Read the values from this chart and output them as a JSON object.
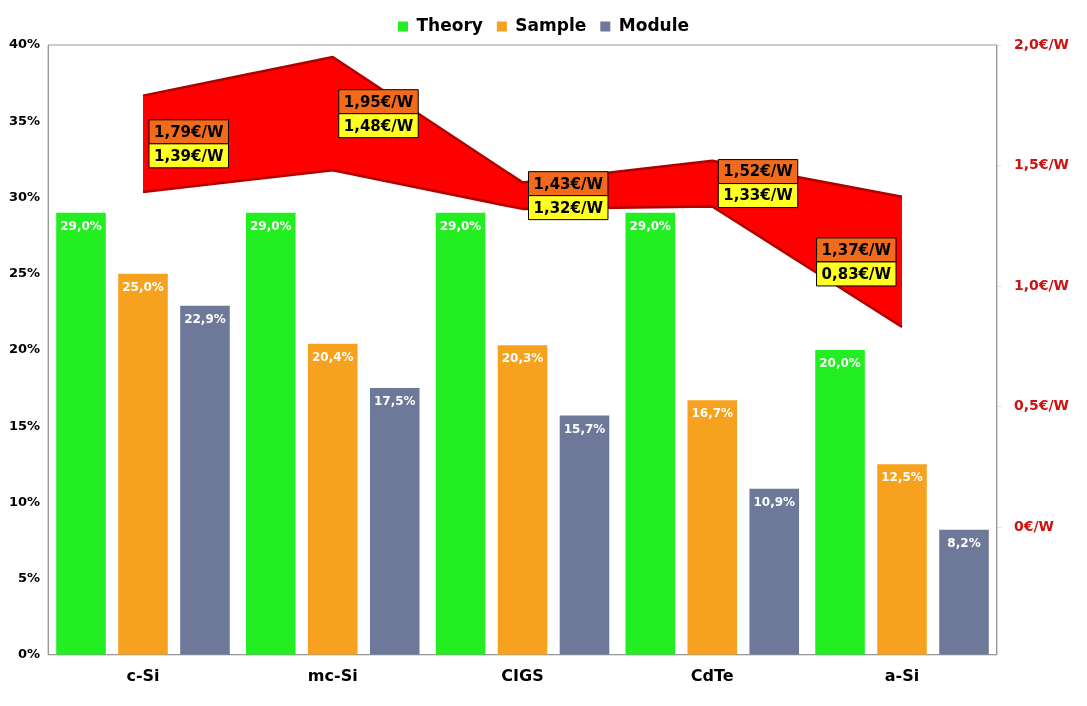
{
  "chart_data": {
    "type": "bar",
    "categories": [
      "c-Si",
      "mc-Si",
      "CIGS",
      "CdTe",
      "a-Si"
    ],
    "ylim": [
      0,
      40
    ],
    "yticks": [
      {
        "value": 0,
        "label": "0%"
      },
      {
        "value": 5,
        "label": "5%"
      },
      {
        "value": 10,
        "label": "10%"
      },
      {
        "value": 15,
        "label": "15%"
      },
      {
        "value": 20,
        "label": "20%"
      },
      {
        "value": 25,
        "label": "25%"
      },
      {
        "value": 30,
        "label": "30%"
      },
      {
        "value": 35,
        "label": "35%"
      },
      {
        "value": 40,
        "label": "40%"
      }
    ],
    "y2lim": [
      -0.53,
      2.0
    ],
    "y2ticks": [
      {
        "value": 0,
        "label": "0€/W"
      },
      {
        "value": 0.5,
        "label": "0,5€/W"
      },
      {
        "value": 1.0,
        "label": "1,0€/W"
      },
      {
        "value": 1.5,
        "label": "1,5€/W"
      },
      {
        "value": 2.0,
        "label": "2,0€/W"
      }
    ],
    "grid": false,
    "legend": "top",
    "series": [
      {
        "name": "Theory",
        "color": "#22ee22",
        "values": [
          29.0,
          29.0,
          29.0,
          29.0,
          20.0
        ],
        "value_labels": [
          "29,0%",
          "29,0%",
          "29,0%",
          "29,0%",
          "20,0%"
        ]
      },
      {
        "name": "Sample",
        "color": "#f7a21e",
        "values": [
          25.0,
          20.4,
          20.3,
          16.7,
          12.5
        ],
        "value_labels": [
          "25,0%",
          "20,4%",
          "20,3%",
          "16,7%",
          "12,5%"
        ]
      },
      {
        "name": "Module",
        "color": "#6e7898",
        "values": [
          22.9,
          17.5,
          15.7,
          10.9,
          8.2
        ],
        "value_labels": [
          "22,9%",
          "17,5%",
          "15,7%",
          "10,9%",
          "8,2%"
        ]
      },
      {
        "type": "line",
        "axis": "y2",
        "marker": "none",
        "color": "#b00000",
        "values": [
          1.79,
          1.95,
          1.43,
          1.52,
          1.37
        ],
        "lower": [
          1.39,
          1.48,
          1.32,
          1.33,
          0.83
        ],
        "upper": [
          1.79,
          1.95,
          1.43,
          1.52,
          1.37
        ],
        "value_labels": [
          "1,79€/W",
          "1,95€/W",
          "1,43€/W",
          "1,52€/W",
          "1,37€/W"
        ]
      },
      {
        "type": "line",
        "axis": "y2",
        "marker": "none",
        "color": "#b00000",
        "values": [
          1.39,
          1.48,
          1.32,
          1.33,
          0.83
        ],
        "value_labels": [
          "1,39€/W",
          "1,48€/W",
          "1,32€/W",
          "1,33€/W",
          "0,83€/W"
        ]
      }
    ]
  }
}
